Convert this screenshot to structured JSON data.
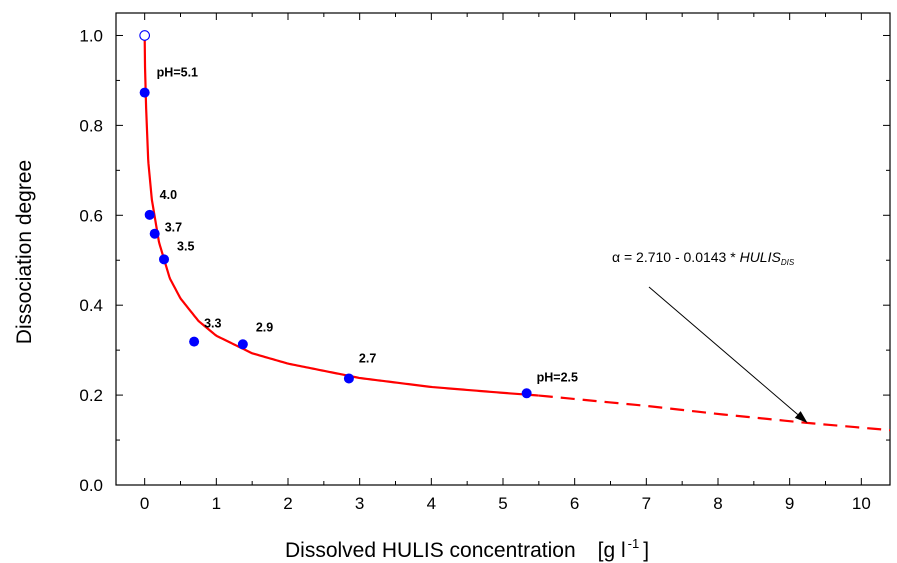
{
  "chart_data": {
    "type": "scatter",
    "xlabel": "Dissolved HULIS concentration",
    "xlabel_unit": "[g l",
    "xlabel_unit_sup": "-1",
    "xlabel_unit_close": "]",
    "ylabel": "Dissociation degree",
    "xlim": [
      -0.4,
      10.4
    ],
    "ylim": [
      0.0,
      1.05
    ],
    "xticks": [
      "0",
      "1",
      "2",
      "3",
      "4",
      "5",
      "6",
      "7",
      "8",
      "9",
      "10"
    ],
    "yticks": [
      "0.0",
      "0.2",
      "0.4",
      "0.6",
      "0.8",
      "1.0"
    ],
    "xtick_values": [
      0,
      1,
      2,
      3,
      4,
      5,
      6,
      7,
      8,
      9,
      10
    ],
    "ytick_values": [
      0.0,
      0.2,
      0.4,
      0.6,
      0.8,
      1.0
    ],
    "series": [
      {
        "marker": "filled-circle",
        "color": "#0000ff",
        "points": [
          {
            "x": 0.0,
            "y": 0.873,
            "label": "pH=5.1"
          },
          {
            "x": 0.07,
            "y": 0.601,
            "label": "4.0"
          },
          {
            "x": 0.14,
            "y": 0.559,
            "label": "3.7"
          },
          {
            "x": 0.27,
            "y": 0.502,
            "label": "3.5"
          },
          {
            "x": 0.69,
            "y": 0.319,
            "label": "3.3"
          },
          {
            "x": 1.37,
            "y": 0.313,
            "label": "2.9"
          },
          {
            "x": 2.85,
            "y": 0.237,
            "label": "2.7"
          },
          {
            "x": 5.33,
            "y": 0.204,
            "label": "pH=2.5"
          }
        ]
      },
      {
        "marker": "open-circle",
        "color": "#0000ff",
        "points": [
          {
            "x": 0.0,
            "y": 1.0
          }
        ]
      }
    ],
    "fit": {
      "color": "#ff0000",
      "solid_x_range": [
        0.0,
        5.5
      ],
      "dashed_x_range": [
        5.5,
        10.4
      ]
    },
    "annotation": {
      "prefix": "α = 2.710 - 0.0143 * ",
      "italic": "HULIS",
      "subscript": "DIS",
      "arrow_to": {
        "x": 9.25,
        "y": 0.138
      }
    }
  }
}
